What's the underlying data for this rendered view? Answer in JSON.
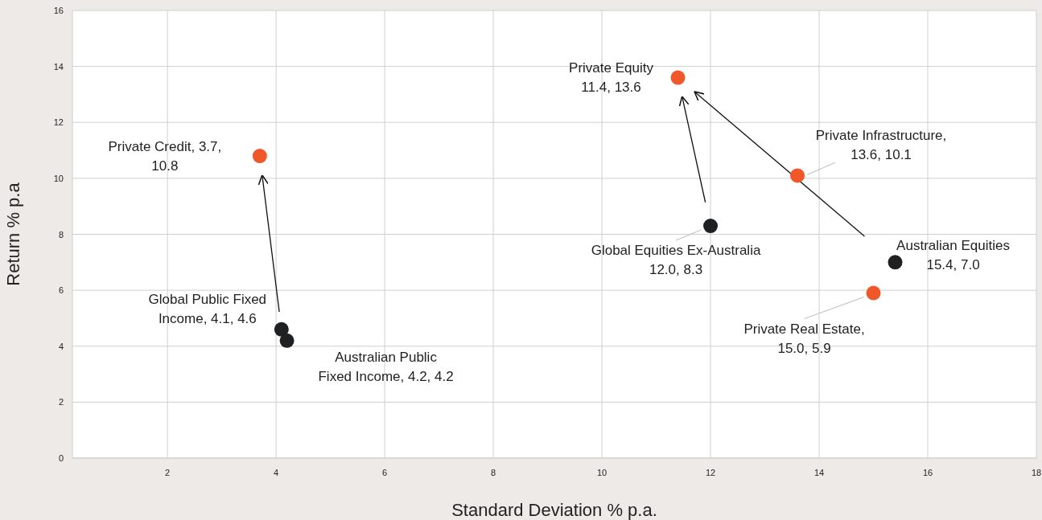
{
  "chart_data": {
    "type": "scatter",
    "xlabel": "Standard Deviation % p.a.",
    "ylabel": "Return % p.a",
    "xlim": [
      0.25,
      18
    ],
    "xticks": [
      2,
      4,
      6,
      8,
      10,
      12,
      14,
      16,
      18
    ],
    "ylim": [
      0,
      16
    ],
    "yticks": [
      0,
      2,
      4,
      6,
      8,
      10,
      12,
      14,
      16
    ],
    "grid": true,
    "marker": "circle",
    "series": [
      {
        "color": "#f0582a",
        "x": [
          3.7,
          11.4,
          13.6,
          15.0
        ],
        "values": [
          10.8,
          13.6,
          10.1,
          5.9
        ]
      },
      {
        "color": "#1f2022",
        "x": [
          4.1,
          4.2,
          12.0,
          15.4
        ],
        "values": [
          4.6,
          4.2,
          8.3,
          7.0
        ]
      }
    ],
    "annotations": [
      {
        "text": "Private Credit, 3.7,\n10.8",
        "x": 3.7,
        "y": 10.8
      },
      {
        "text": "Private Equity\n11.4, 13.6",
        "x": 11.4,
        "y": 13.6
      },
      {
        "text": "Private Infrastructure,\n13.6, 10.1",
        "x": 13.6,
        "y": 10.1
      },
      {
        "text": "Private Real Estate,\n15.0, 5.9",
        "x": 15.0,
        "y": 5.9
      },
      {
        "text": "Global Public Fixed\nIncome, 4.1, 4.6",
        "x": 4.1,
        "y": 4.6
      },
      {
        "text": "Australian Public\nFixed Income, 4.2, 4.2",
        "x": 4.2,
        "y": 4.2
      },
      {
        "text": "Global Equities Ex-Australia\n12.0, 8.3",
        "x": 12.0,
        "y": 8.3
      },
      {
        "text": "Australian Equities\n15.4, 7.0",
        "x": 15.4,
        "y": 7.0
      }
    ]
  }
}
